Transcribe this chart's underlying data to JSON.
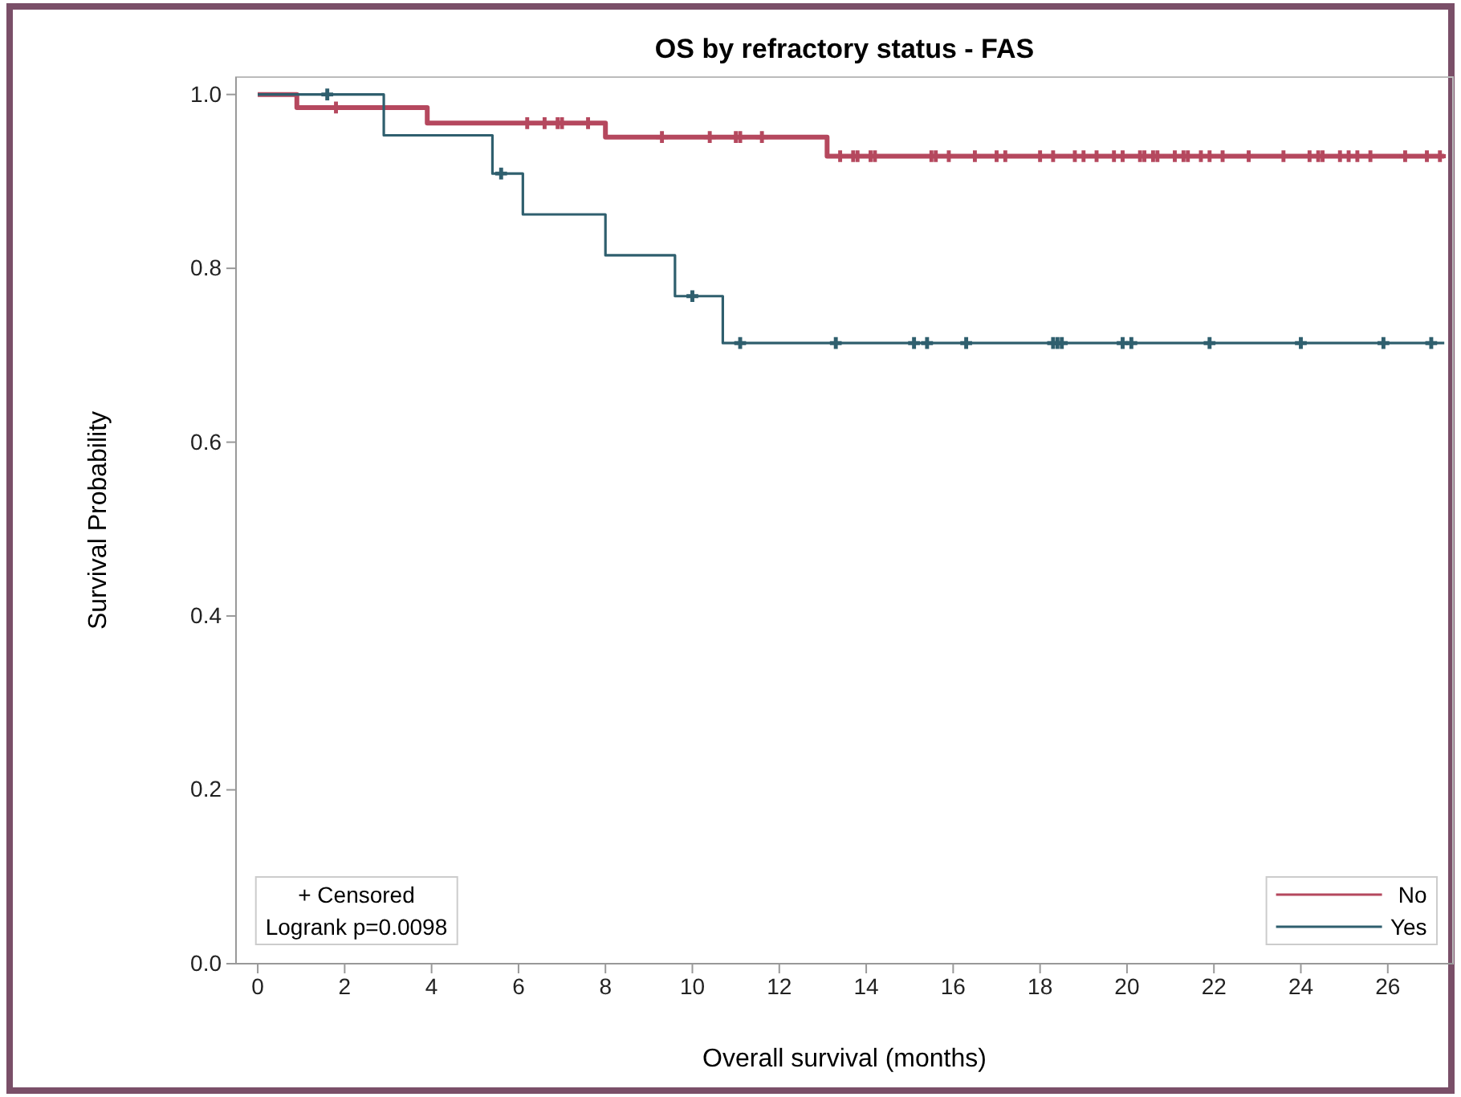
{
  "chart_data": {
    "type": "step",
    "title": "OS by refractory status - FAS",
    "xlabel": "Overall survival (months)",
    "ylabel": "Survival Probability",
    "xlim": [
      -0.5,
      27.5
    ],
    "xticks": [
      0,
      2,
      4,
      6,
      8,
      10,
      12,
      14,
      16,
      18,
      20,
      22,
      24,
      26
    ],
    "ylim": [
      0,
      1.02
    ],
    "yticks": [
      {
        "value": 0,
        "label": "0.0"
      },
      {
        "value": 0.2,
        "label": "0.2"
      },
      {
        "value": 0.4,
        "label": "0.4"
      },
      {
        "value": 0.6,
        "label": "0.6"
      },
      {
        "value": 0.8,
        "label": "0.8"
      },
      {
        "value": 1,
        "label": "1.0"
      }
    ],
    "grid": false,
    "legend": "bottom right",
    "annotations": [
      "+ Censored",
      "Logrank p=0.0098"
    ],
    "series": [
      {
        "name": "No",
        "color": "#b5485e",
        "x": [
          0,
          0.9,
          3.9,
          8.0,
          13.1,
          27.3
        ],
        "values": [
          1,
          0.985,
          0.967,
          0.951,
          0.929,
          0.929
        ]
      },
      {
        "name": "Yes",
        "color": "#2f5f6e",
        "x": [
          0,
          2.9,
          5.4,
          6.1,
          8.0,
          9.6,
          10.7,
          27.3
        ],
        "values": [
          1,
          0.953,
          0.909,
          0.862,
          0.815,
          0.768,
          0.714,
          0.714
        ]
      },
      {
        "type": "scatter",
        "marker": "cross",
        "color": "#b5485e",
        "x": [
          1.8,
          6.2,
          6.6,
          6.9,
          7.0,
          7.6,
          9.3,
          10.4,
          11.0,
          11.1,
          11.6,
          13.4,
          13.7,
          13.8,
          14.1,
          14.2,
          15.5,
          15.6,
          15.9,
          16.5,
          17.0,
          17.2,
          18.0,
          18.3,
          18.8,
          19.0,
          19.3,
          19.7,
          19.9,
          20.3,
          20.4,
          20.6,
          20.7,
          21.1,
          21.3,
          21.4,
          21.7,
          21.9,
          22.2,
          22.8,
          23.6,
          24.2,
          24.4,
          24.5,
          24.9,
          25.1,
          25.3,
          25.6,
          26.4,
          26.9,
          27.2
        ],
        "values": [
          0.985,
          0.967,
          0.967,
          0.967,
          0.967,
          0.967,
          0.951,
          0.951,
          0.951,
          0.951,
          0.951,
          0.929,
          0.929,
          0.929,
          0.929,
          0.929,
          0.929,
          0.929,
          0.929,
          0.929,
          0.929,
          0.929,
          0.929,
          0.929,
          0.929,
          0.929,
          0.929,
          0.929,
          0.929,
          0.929,
          0.929,
          0.929,
          0.929,
          0.929,
          0.929,
          0.929,
          0.929,
          0.929,
          0.929,
          0.929,
          0.929,
          0.929,
          0.929,
          0.929,
          0.929,
          0.929,
          0.929,
          0.929,
          0.929,
          0.929,
          0.929
        ]
      },
      {
        "type": "scatter",
        "marker": "cross",
        "color": "#2f5f6e",
        "x": [
          1.6,
          5.6,
          10.0,
          11.1,
          13.3,
          15.1,
          15.4,
          16.3,
          18.3,
          18.4,
          18.5,
          19.9,
          20.1,
          21.9,
          24.0,
          25.9,
          27.0
        ],
        "values": [
          1,
          0.909,
          0.768,
          0.714,
          0.714,
          0.714,
          0.714,
          0.714,
          0.714,
          0.714,
          0.714,
          0.714,
          0.714,
          0.714,
          0.714,
          0.714,
          0.714
        ]
      }
    ]
  }
}
